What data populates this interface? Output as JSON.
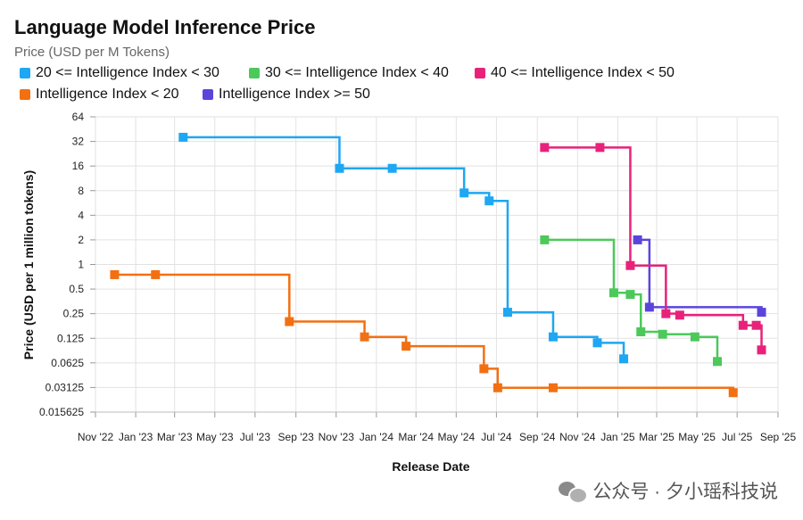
{
  "chart_data": {
    "type": "line",
    "step": true,
    "title": "Language Model Inference Price",
    "subtitle": "Price (USD per M Tokens)",
    "xlabel": "Release Date",
    "ylabel": "Price (USD per 1 million tokens)",
    "yscale": "log2",
    "ylim": [
      0.015625,
      64
    ],
    "yticks": [
      64,
      32,
      16,
      8,
      4,
      2,
      1,
      0.5,
      0.25,
      0.125,
      0.0625,
      0.03125,
      0.015625
    ],
    "ytick_labels": [
      "64",
      "32",
      "16",
      "8",
      "4",
      "2",
      "1",
      "0.5",
      "0.25",
      "0.125",
      "0.0625",
      "0.03125",
      "0.015625"
    ],
    "xlim": [
      "2022-11-01",
      "2025-09-01"
    ],
    "xticks": [
      "2022-11-01",
      "2023-01-01",
      "2023-03-01",
      "2023-05-01",
      "2023-07-01",
      "2023-09-01",
      "2023-11-01",
      "2024-01-01",
      "2024-03-01",
      "2024-05-01",
      "2024-07-01",
      "2024-09-01",
      "2024-11-01",
      "2025-01-01",
      "2025-03-01",
      "2025-05-01",
      "2025-07-01",
      "2025-09-01"
    ],
    "xtick_labels": [
      "Nov '22",
      "Jan '23",
      "Mar '23",
      "May '23",
      "Jul '23",
      "Sep '23",
      "Nov '23",
      "Jan '24",
      "Mar '24",
      "May '24",
      "Jul '24",
      "Sep '24",
      "Nov '24",
      "Jan '25",
      "Mar '25",
      "May '25",
      "Jul '25",
      "Sep '25"
    ],
    "grid": true,
    "legend_position": "top-left",
    "series": [
      {
        "name": "20 <= Intelligence Index < 30",
        "color": "#1ea7f2",
        "points": [
          {
            "x": "2023-03-14",
            "y": 36
          },
          {
            "x": "2023-11-06",
            "y": 15
          },
          {
            "x": "2024-01-25",
            "y": 15
          },
          {
            "x": "2024-05-13",
            "y": 7.5
          },
          {
            "x": "2024-06-20",
            "y": 6
          },
          {
            "x": "2024-07-18",
            "y": 0.26
          },
          {
            "x": "2024-09-25",
            "y": 0.13
          },
          {
            "x": "2024-12-01",
            "y": 0.11
          },
          {
            "x": "2025-01-10",
            "y": 0.07
          }
        ]
      },
      {
        "name": "Intelligence Index < 20",
        "color": "#f27012",
        "points": [
          {
            "x": "2022-11-30",
            "y": 0.75
          },
          {
            "x": "2023-01-31",
            "y": 0.75
          },
          {
            "x": "2023-08-22",
            "y": 0.2
          },
          {
            "x": "2023-12-14",
            "y": 0.13
          },
          {
            "x": "2024-02-15",
            "y": 0.1
          },
          {
            "x": "2024-06-12",
            "y": 0.053
          },
          {
            "x": "2024-07-03",
            "y": 0.031
          },
          {
            "x": "2024-09-25",
            "y": 0.031
          },
          {
            "x": "2025-06-25",
            "y": 0.027
          }
        ]
      },
      {
        "name": "30 <= Intelligence Index < 40",
        "color": "#4cc95a",
        "points": [
          {
            "x": "2024-09-12",
            "y": 2
          },
          {
            "x": "2024-12-26",
            "y": 0.45
          },
          {
            "x": "2025-01-20",
            "y": 0.43
          },
          {
            "x": "2025-02-05",
            "y": 0.15
          },
          {
            "x": "2025-03-10",
            "y": 0.14
          },
          {
            "x": "2025-04-28",
            "y": 0.13
          },
          {
            "x": "2025-06-01",
            "y": 0.065
          }
        ]
      },
      {
        "name": "Intelligence Index >= 50",
        "color": "#5a45dc",
        "points": [
          {
            "x": "2025-01-31",
            "y": 2
          },
          {
            "x": "2025-02-18",
            "y": 0.3
          },
          {
            "x": "2025-08-07",
            "y": 0.26
          }
        ]
      },
      {
        "name": "40 <= Intelligence Index < 50",
        "color": "#e8227a",
        "points": [
          {
            "x": "2024-09-12",
            "y": 27
          },
          {
            "x": "2024-12-05",
            "y": 27
          },
          {
            "x": "2025-01-20",
            "y": 0.97
          },
          {
            "x": "2025-03-15",
            "y": 0.25
          },
          {
            "x": "2025-04-05",
            "y": 0.24
          },
          {
            "x": "2025-07-10",
            "y": 0.18
          },
          {
            "x": "2025-07-30",
            "y": 0.18
          },
          {
            "x": "2025-08-07",
            "y": 0.09
          }
        ]
      }
    ]
  },
  "legend": [
    {
      "label": "20 <= Intelligence Index < 30",
      "color": "#1ea7f2"
    },
    {
      "label": "30 <= Intelligence Index < 40",
      "color": "#4cc95a"
    },
    {
      "label": "40 <= Intelligence Index < 50",
      "color": "#e8227a"
    },
    {
      "label": "Intelligence Index < 20",
      "color": "#f27012"
    },
    {
      "label": "Intelligence Index >= 50",
      "color": "#5a45dc"
    }
  ],
  "watermark": {
    "icon": "wechat-icon",
    "text": "公众号 · 夕小瑶科技说"
  }
}
